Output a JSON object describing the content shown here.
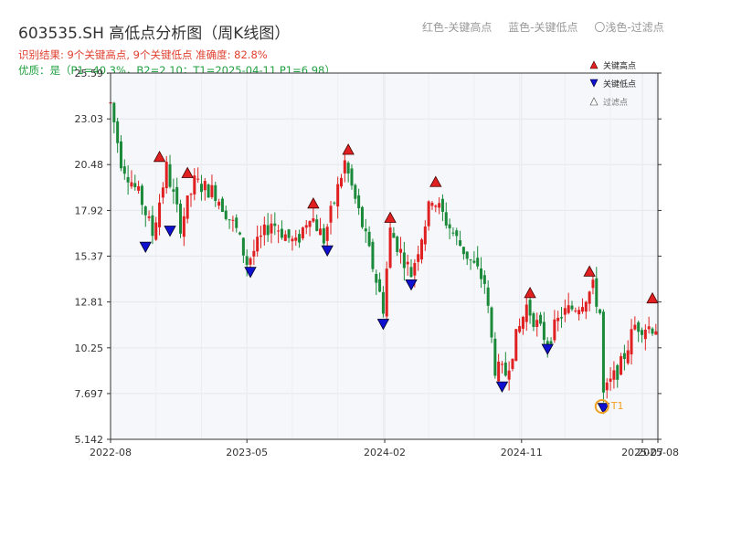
{
  "header": {
    "title": "603535.SH 高低点分析图（周K线图）",
    "result_text": "识别结果: 9个关键高点, 9个关键低点   准确度: 82.8%",
    "quality_text": "优质：是（P1=40.3%，B2=2.10；T1=2025-04-11 P1=6.98）"
  },
  "top_legend": {
    "red_item": "红色-关键高点",
    "blue_item": "蓝色-关键低点",
    "filtered_item": "〇浅色-过滤点"
  },
  "colors": {
    "up": "#e02020",
    "down": "#1a8a3a",
    "high_marker": "#e02020",
    "low_marker": "#1010d0",
    "t1": "#f0a020",
    "plot_bg": "#f5f7fa"
  },
  "chart_data": {
    "type": "candlestick",
    "title": "603535.SH 高低点分析图（周K线图）",
    "x_tick_labels": [
      "2022-08",
      "2023-05",
      "2024-02",
      "2024-11",
      "2025-07",
      "2025-08"
    ],
    "x_tick_dates": [
      "2022-08-01",
      "2023-05-01",
      "2024-02-01",
      "2024-11-01",
      "2025-07-01",
      "2025-08-01"
    ],
    "x_range": [
      "2022-08-01",
      "2025-08-01"
    ],
    "y_tick_labels": [
      "5.142",
      "7.697",
      "10.25",
      "12.81",
      "15.37",
      "17.92",
      "20.48",
      "23.03",
      "25.59"
    ],
    "y_ticks": [
      5.142,
      7.697,
      10.25,
      12.81,
      15.37,
      17.92,
      20.48,
      23.03,
      25.59
    ],
    "y_range": [
      5.142,
      25.59
    ],
    "grid": true,
    "legend_position": "top-right",
    "legend": [
      "关键高点",
      "关键低点",
      "过滤点"
    ],
    "ohlc_anchors": [
      [
        "2022-08-01",
        23.9
      ],
      [
        "2022-08-22",
        20.7
      ],
      [
        "2022-10-03",
        18.4
      ],
      [
        "2022-10-24",
        16.6
      ],
      [
        "2022-11-21",
        20.3
      ],
      [
        "2022-12-19",
        17.1
      ],
      [
        "2023-01-16",
        19.5
      ],
      [
        "2023-02-27",
        18.9
      ],
      [
        "2023-04-10",
        16.8
      ],
      [
        "2023-05-01",
        15.0
      ],
      [
        "2023-06-19",
        17.3
      ],
      [
        "2023-08-07",
        16.0
      ],
      [
        "2023-09-04",
        17.8
      ],
      [
        "2023-10-02",
        16.3
      ],
      [
        "2023-11-13",
        20.6
      ],
      [
        "2023-12-18",
        17.1
      ],
      [
        "2024-01-29",
        12.5
      ],
      [
        "2024-02-12",
        16.8
      ],
      [
        "2024-03-25",
        14.4
      ],
      [
        "2024-05-06",
        18.7
      ],
      [
        "2024-06-24",
        16.3
      ],
      [
        "2024-08-19",
        13.9
      ],
      [
        "2024-09-09",
        9.1
      ],
      [
        "2024-09-30",
        8.8
      ],
      [
        "2024-10-21",
        10.8
      ],
      [
        "2024-11-11",
        12.6
      ],
      [
        "2024-12-09",
        11.2
      ],
      [
        "2024-12-23",
        10.6
      ],
      [
        "2025-01-20",
        12.1
      ],
      [
        "2025-02-24",
        12.7
      ],
      [
        "2025-03-24",
        13.6
      ],
      [
        "2025-04-07",
        12.2
      ],
      [
        "2025-04-14",
        7.6
      ],
      [
        "2025-05-19",
        9.3
      ],
      [
        "2025-06-16",
        11.5
      ],
      [
        "2025-07-28",
        11.4
      ]
    ],
    "key_highs": [
      {
        "date": "2022-11-07",
        "value": 20.5
      },
      {
        "date": "2023-01-02",
        "value": 19.6
      },
      {
        "date": "2023-09-11",
        "value": 17.9
      },
      {
        "date": "2023-11-20",
        "value": 20.9
      },
      {
        "date": "2024-02-12",
        "value": 17.1
      },
      {
        "date": "2024-05-13",
        "value": 19.1
      },
      {
        "date": "2024-11-18",
        "value": 12.9
      },
      {
        "date": "2025-03-17",
        "value": 14.1
      },
      {
        "date": "2025-07-21",
        "value": 12.6
      }
    ],
    "key_lows": [
      {
        "date": "2022-10-10",
        "value": 16.3
      },
      {
        "date": "2022-11-28",
        "value": 17.2
      },
      {
        "date": "2023-05-08",
        "value": 14.9
      },
      {
        "date": "2023-10-09",
        "value": 16.1
      },
      {
        "date": "2024-01-29",
        "value": 12.0
      },
      {
        "date": "2024-03-25",
        "value": 14.2
      },
      {
        "date": "2024-09-23",
        "value": 8.5
      },
      {
        "date": "2024-12-23",
        "value": 10.6
      },
      {
        "date": "2025-04-14",
        "value": 7.3
      }
    ],
    "t1": {
      "label": "T1",
      "date": "2025-04-11",
      "value": 6.98
    }
  }
}
